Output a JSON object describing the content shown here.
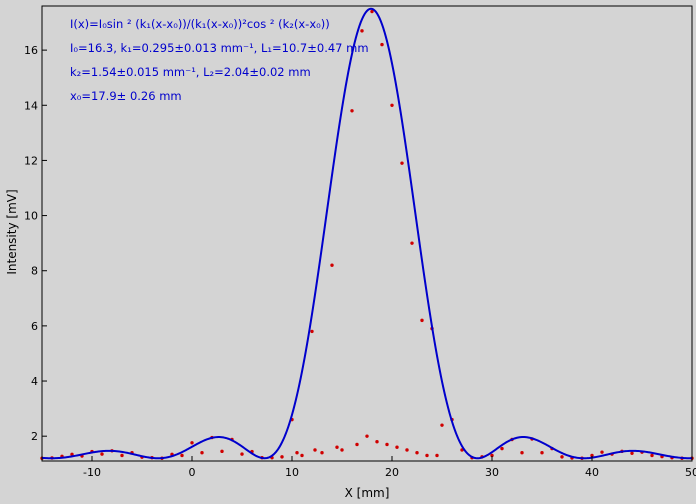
{
  "chart_data": {
    "type": "scatter",
    "xlabel": "X [mm]",
    "ylabel": "Intensity [mV]",
    "xlim": [
      -15,
      50
    ],
    "ylim": [
      1.1,
      17.6
    ],
    "x_ticks": [
      -10,
      0,
      10,
      20,
      30,
      40,
      50
    ],
    "y_ticks": [
      2,
      4,
      6,
      8,
      10,
      12,
      14,
      16
    ],
    "grid": false,
    "background": "#d4d4d4",
    "annotation": [
      "I(x)=I₀sin ² (k₁(x-x₀))/(k₁(x-x₀))²cos ² (k₂(x-x₀))",
      "I₀=16.3,  k₁=0.295±0.013 mm⁻¹,   L₁=10.7±0.47 mm",
      "k₂=1.54±0.015 mm⁻¹,   L₂=2.04±0.02 mm",
      "x₀=17.9±  0.26 mm"
    ],
    "fit": {
      "I0": 16.3,
      "k1": 0.295,
      "k2": 1.54,
      "x0": 17.9,
      "offset": 1.2,
      "color": "#0000cc"
    },
    "measured": {
      "color": "#d00000",
      "points": [
        [
          -15.0,
          1.2
        ],
        [
          -14.0,
          1.21
        ],
        [
          -13.0,
          1.27
        ],
        [
          -12.0,
          1.34
        ],
        [
          -11.0,
          1.28
        ],
        [
          -10.0,
          1.44
        ],
        [
          -9.0,
          1.35
        ],
        [
          -8.0,
          1.47
        ],
        [
          -7.0,
          1.3
        ],
        [
          -6.0,
          1.4
        ],
        [
          -5.0,
          1.24
        ],
        [
          -4.0,
          1.22
        ],
        [
          -3.0,
          1.2
        ],
        [
          -2.0,
          1.34
        ],
        [
          -1.0,
          1.3
        ],
        [
          0.0,
          1.76
        ],
        [
          1.0,
          1.4
        ],
        [
          2.0,
          1.95
        ],
        [
          3.0,
          1.45
        ],
        [
          4.0,
          1.88
        ],
        [
          5.0,
          1.35
        ],
        [
          6.0,
          1.44
        ],
        [
          7.0,
          1.22
        ],
        [
          8.0,
          1.22
        ],
        [
          9.0,
          1.25
        ],
        [
          10.0,
          2.6
        ],
        [
          10.5,
          1.4
        ],
        [
          11.0,
          1.3
        ],
        [
          12.0,
          5.8
        ],
        [
          12.3,
          1.5
        ],
        [
          13.0,
          1.4
        ],
        [
          14.0,
          8.2
        ],
        [
          14.5,
          1.6
        ],
        [
          15.0,
          1.5
        ],
        [
          16.0,
          13.8
        ],
        [
          16.5,
          1.7
        ],
        [
          17.0,
          16.7
        ],
        [
          17.5,
          2.0
        ],
        [
          18.0,
          17.4
        ],
        [
          18.5,
          1.8
        ],
        [
          19.0,
          16.2
        ],
        [
          19.5,
          1.7
        ],
        [
          20.0,
          14.0
        ],
        [
          20.5,
          1.6
        ],
        [
          21.0,
          11.9
        ],
        [
          21.5,
          1.5
        ],
        [
          22.0,
          9.0
        ],
        [
          22.5,
          1.4
        ],
        [
          23.0,
          6.2
        ],
        [
          23.5,
          1.3
        ],
        [
          24.0,
          5.9
        ],
        [
          24.5,
          1.3
        ],
        [
          25.0,
          2.4
        ],
        [
          26.0,
          2.6
        ],
        [
          27.0,
          1.5
        ],
        [
          28.0,
          1.22
        ],
        [
          29.0,
          1.25
        ],
        [
          30.0,
          1.3
        ],
        [
          31.0,
          1.55
        ],
        [
          32.0,
          1.88
        ],
        [
          33.0,
          1.4
        ],
        [
          34.0,
          1.9
        ],
        [
          35.0,
          1.4
        ],
        [
          36.0,
          1.55
        ],
        [
          37.0,
          1.25
        ],
        [
          38.0,
          1.21
        ],
        [
          39.0,
          1.2
        ],
        [
          40.0,
          1.3
        ],
        [
          41.0,
          1.42
        ],
        [
          42.0,
          1.35
        ],
        [
          43.0,
          1.45
        ],
        [
          44.0,
          1.38
        ],
        [
          45.0,
          1.42
        ],
        [
          46.0,
          1.3
        ],
        [
          47.0,
          1.26
        ],
        [
          48.0,
          1.22
        ],
        [
          49.0,
          1.2
        ],
        [
          50.0,
          1.2
        ]
      ]
    }
  }
}
